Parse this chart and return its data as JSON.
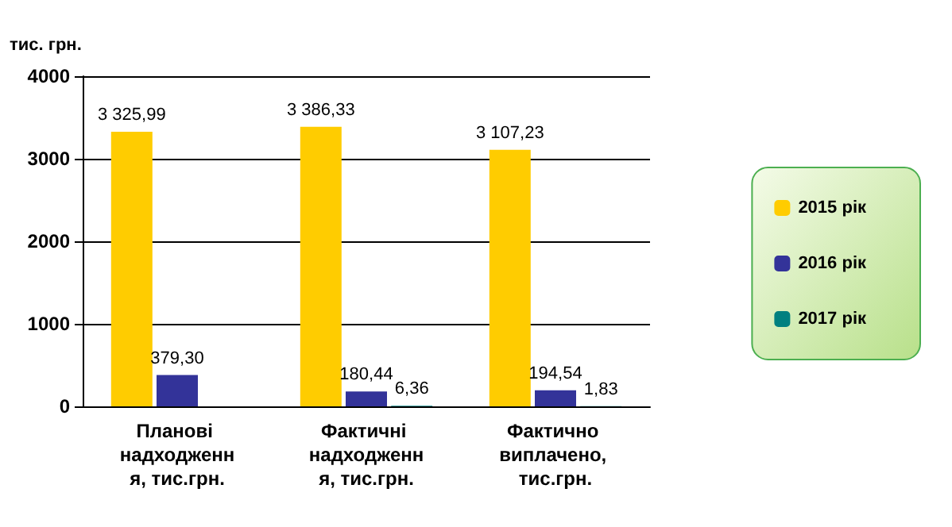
{
  "chart_data": {
    "type": "bar",
    "ylabel": "тис. грн.",
    "categories": [
      "Планові надходження, тис.грн.",
      "Фактичні надходження, тис.грн.",
      "Фактично виплачено, тис.грн."
    ],
    "series": [
      {
        "name": "2015 рік",
        "color": "#ffcc00",
        "values": [
          3325.99,
          3386.33,
          3107.23
        ],
        "value_labels": [
          "3 325,99",
          "3 386,33",
          "3 107,23"
        ]
      },
      {
        "name": "2016 рік",
        "color": "#333399",
        "values": [
          379.3,
          180.44,
          194.54
        ],
        "value_labels": [
          "379,30",
          "180,44",
          "194,54"
        ]
      },
      {
        "name": "2017 рік",
        "color": "#008080",
        "values": [
          0,
          6.36,
          1.83
        ],
        "value_labels": [
          null,
          "6,36",
          "1,83"
        ]
      }
    ],
    "ylim": [
      0,
      4000
    ],
    "yticks": [
      0,
      1000,
      2000,
      3000,
      4000
    ],
    "grid": "y",
    "legend": "right"
  }
}
